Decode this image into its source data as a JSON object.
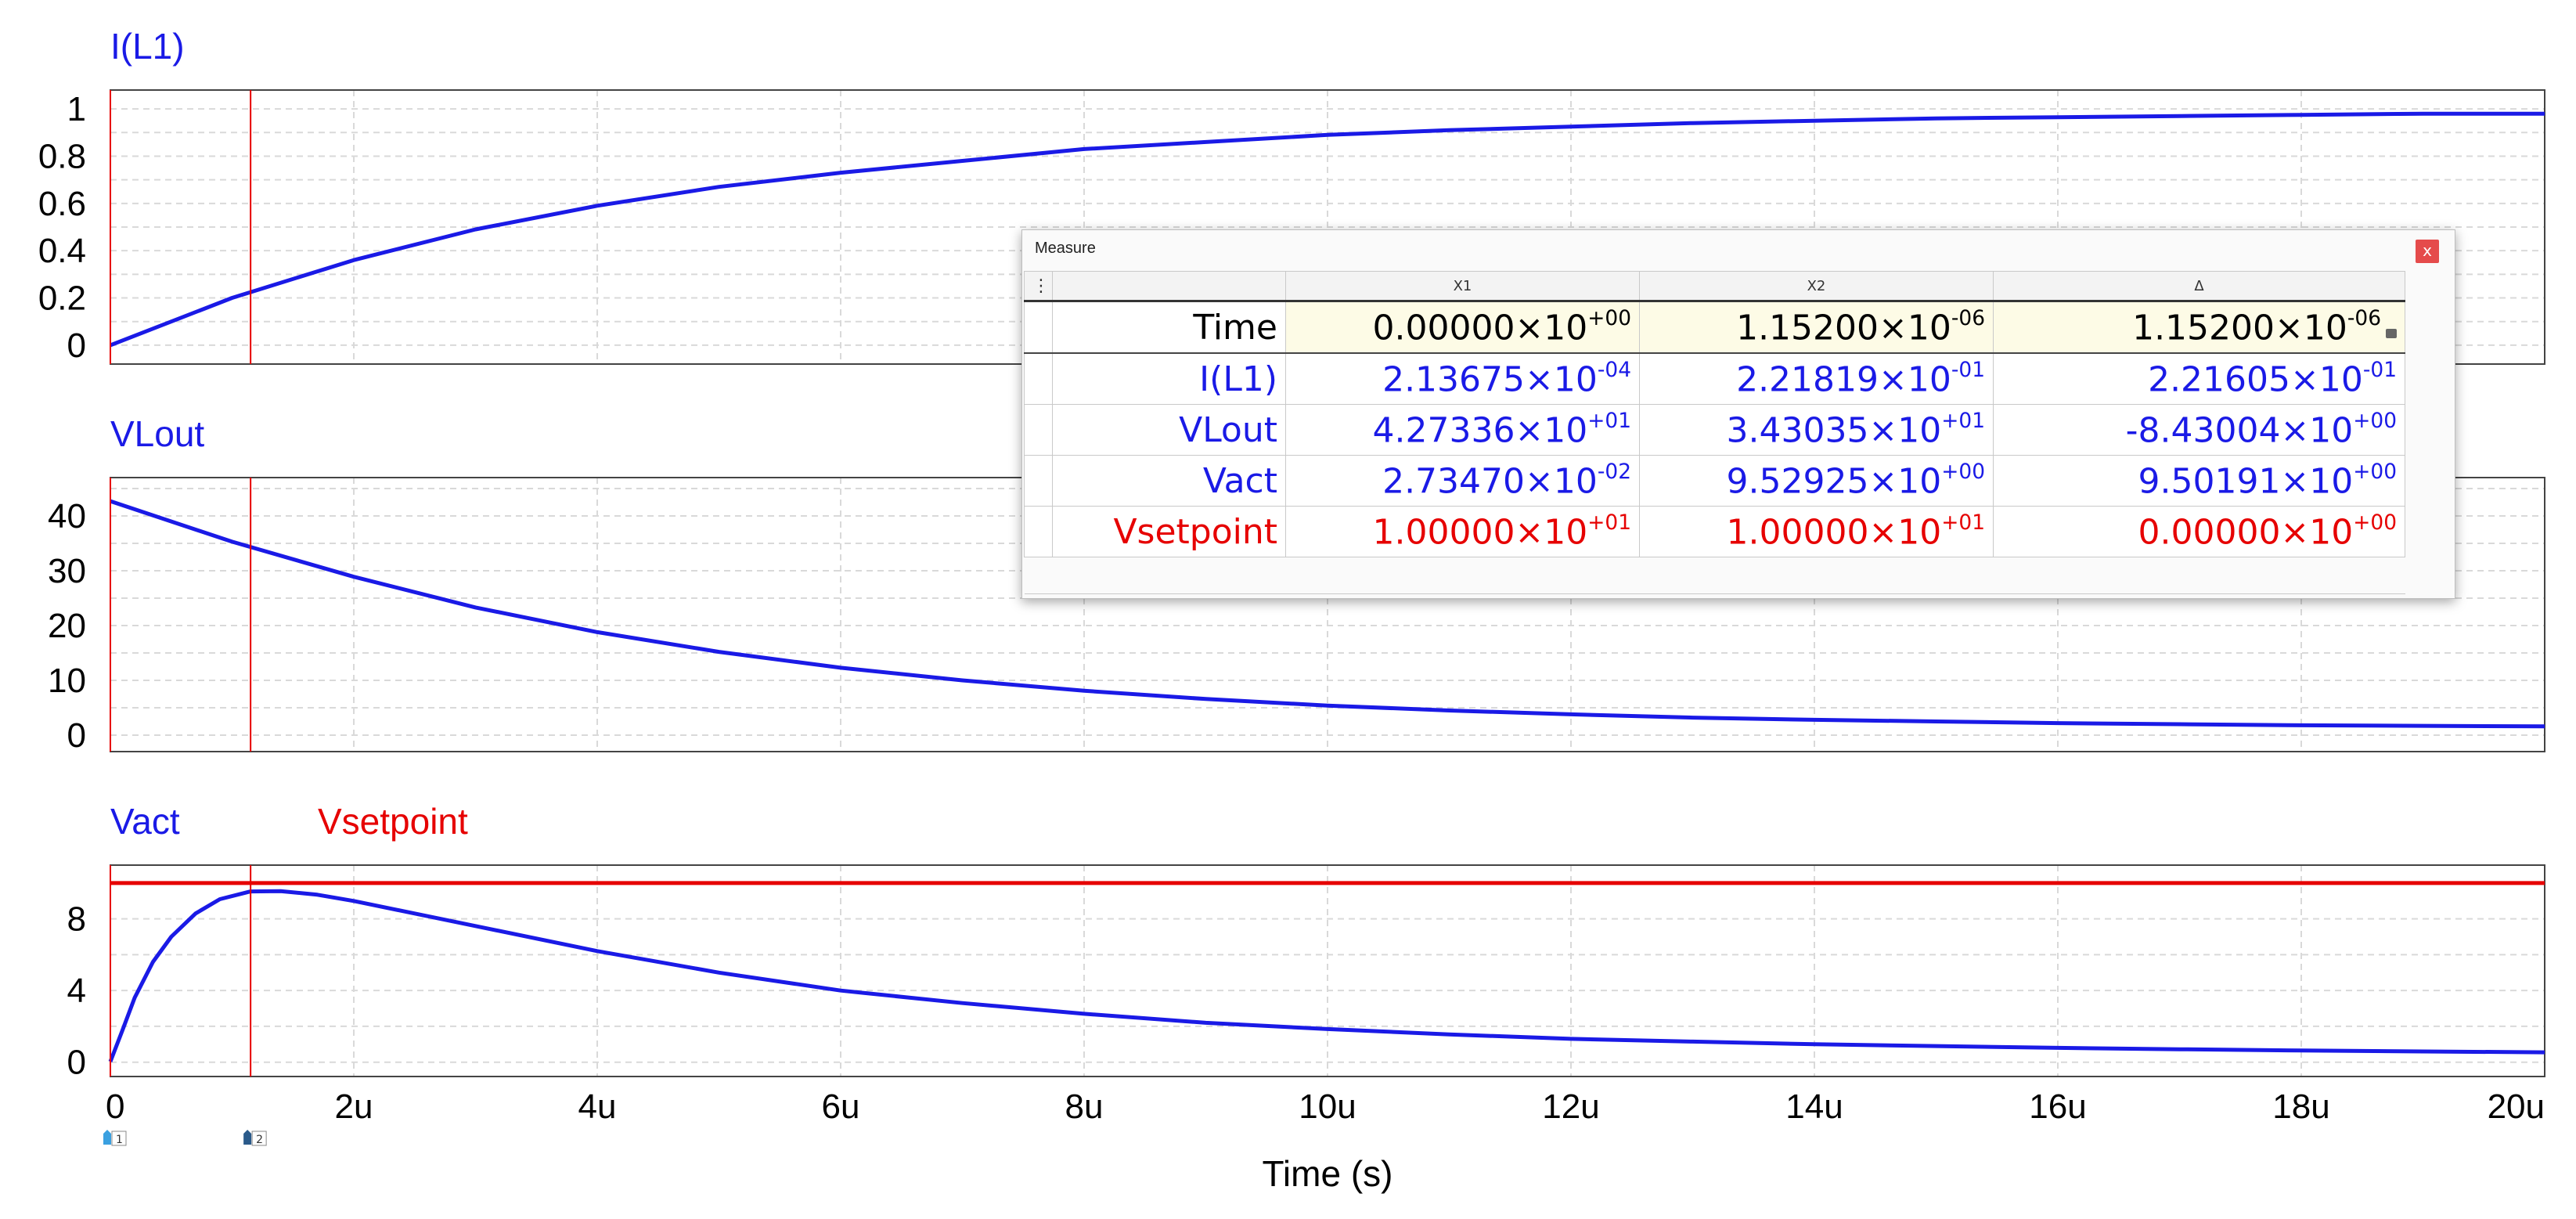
{
  "chart_data": [
    {
      "type": "line",
      "panel": "top",
      "series": [
        {
          "name": "I(L1)",
          "color": "#1a1ae6",
          "x": [
            0,
            1,
            2,
            3,
            4,
            5,
            6,
            7,
            8,
            9,
            10,
            11,
            12,
            13,
            14,
            15,
            16,
            17,
            18,
            19,
            20
          ],
          "y": [
            0,
            0.2,
            0.36,
            0.49,
            0.59,
            0.67,
            0.73,
            0.78,
            0.83,
            0.86,
            0.89,
            0.91,
            0.925,
            0.94,
            0.95,
            0.96,
            0.965,
            0.97,
            0.975,
            0.98,
            0.98
          ]
        }
      ],
      "yticks": [
        "0",
        "0.2",
        "0.4",
        "0.6",
        "0.8",
        "1"
      ],
      "ylim": [
        -0.08,
        1.08
      ],
      "xlim": [
        0,
        20
      ],
      "grid": true
    },
    {
      "type": "line",
      "panel": "middle",
      "series": [
        {
          "name": "VLout",
          "color": "#1a1ae6",
          "x": [
            0,
            1,
            2,
            3,
            4,
            5,
            6,
            7,
            8,
            9,
            10,
            11,
            12,
            13,
            14,
            15,
            16,
            17,
            18,
            19,
            20
          ],
          "y": [
            42.7,
            35.3,
            28.9,
            23.3,
            18.8,
            15.2,
            12.3,
            10.0,
            8.1,
            6.6,
            5.4,
            4.5,
            3.8,
            3.2,
            2.8,
            2.5,
            2.2,
            2.0,
            1.8,
            1.7,
            1.6
          ]
        }
      ],
      "yticks": [
        "0",
        "10",
        "20",
        "30",
        "40"
      ],
      "ylim": [
        -3,
        47
      ],
      "xlim": [
        0,
        20
      ],
      "grid": true
    },
    {
      "type": "line",
      "panel": "bottom",
      "series": [
        {
          "name": "Vact",
          "color": "#1a1ae6",
          "x": [
            0,
            0.1,
            0.2,
            0.35,
            0.5,
            0.7,
            0.9,
            1.152,
            1.4,
            1.7,
            2,
            2.5,
            3,
            4,
            5,
            6,
            7,
            8,
            9,
            10,
            11,
            12,
            13,
            14,
            15,
            16,
            17,
            18,
            19,
            20
          ],
          "y": [
            0.03,
            1.8,
            3.6,
            5.6,
            7.0,
            8.3,
            9.1,
            9.53,
            9.55,
            9.35,
            9.0,
            8.3,
            7.6,
            6.2,
            5.0,
            4.0,
            3.3,
            2.7,
            2.2,
            1.85,
            1.55,
            1.3,
            1.15,
            1.0,
            0.9,
            0.8,
            0.72,
            0.65,
            0.6,
            0.55
          ]
        },
        {
          "name": "Vsetpoint",
          "color": "#e60000",
          "x": [
            0,
            20
          ],
          "y": [
            10,
            10
          ]
        }
      ],
      "yticks": [
        "0",
        "4",
        "8"
      ],
      "ylim": [
        -0.8,
        11.0
      ],
      "xlim": [
        0,
        20
      ],
      "grid": true
    }
  ],
  "xaxis": {
    "ticks": [
      "0",
      "2u",
      "4u",
      "6u",
      "8u",
      "10u",
      "12u",
      "14u",
      "16u",
      "18u",
      "20u"
    ],
    "label": "Time (s)"
  },
  "cursors": {
    "x1": 0,
    "x2": 1.152,
    "color": "#e60000",
    "x1_flag": "1",
    "x2_flag": "2"
  },
  "measure": {
    "title": "Measure",
    "close_label": "x",
    "menu_glyph": "⋮",
    "columns": [
      "X1",
      "X2",
      "Δ"
    ],
    "rows": [
      {
        "label": "Time",
        "color": "#000000",
        "x1": [
          "0.00000×10",
          "+00"
        ],
        "x2": [
          "1.15200×10",
          "-06"
        ],
        "d": [
          "1.15200×10",
          "-06"
        ]
      },
      {
        "label": "I(L1)",
        "color": "#1a1ae6",
        "x1": [
          "2.13675×10",
          "-04"
        ],
        "x2": [
          "2.21819×10",
          "-01"
        ],
        "d": [
          "2.21605×10",
          "-01"
        ]
      },
      {
        "label": "VLout",
        "color": "#1a1ae6",
        "x1": [
          "4.27336×10",
          "+01"
        ],
        "x2": [
          "3.43035×10",
          "+01"
        ],
        "d": [
          "-8.43004×10",
          "+00"
        ]
      },
      {
        "label": "Vact",
        "color": "#1a1ae6",
        "x1": [
          "2.73470×10",
          "-02"
        ],
        "x2": [
          "9.52925×10",
          "+00"
        ],
        "d": [
          "9.50191×10",
          "+00"
        ]
      },
      {
        "label": "Vsetpoint",
        "color": "#e60000",
        "x1": [
          "1.00000×10",
          "+01"
        ],
        "x2": [
          "1.00000×10",
          "+01"
        ],
        "d": [
          "0.00000×10",
          "+00"
        ]
      }
    ]
  }
}
